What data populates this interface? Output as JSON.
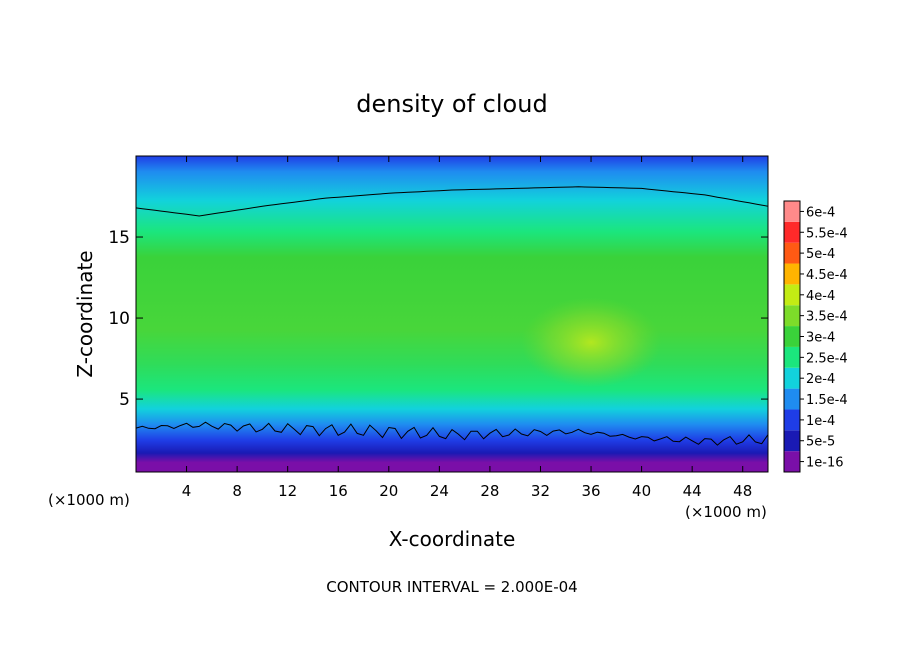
{
  "chart_data": {
    "type": "heatmap",
    "title": "density of cloud",
    "xlabel": "X-coordinate",
    "ylabel": "Z-coordinate",
    "x_unit_left": "(×1000 m)",
    "x_unit_right": "(×1000 m)",
    "footer": "CONTOUR INTERVAL = 2.000E-04",
    "xlim": [
      0,
      50
    ],
    "ylim": [
      0.5,
      20
    ],
    "x_ticks": [
      4,
      8,
      12,
      16,
      20,
      24,
      28,
      32,
      36,
      40,
      44,
      48
    ],
    "y_ticks": [
      5,
      10,
      15
    ],
    "legend_placement": "right",
    "colorbar": [
      {
        "label": "1e-16",
        "color": "#7a0fa8"
      },
      {
        "label": "5e-5",
        "color": "#1a1ab4"
      },
      {
        "label": "1e-4",
        "color": "#1f3de6"
      },
      {
        "label": "1.5e-4",
        "color": "#1f8cf0"
      },
      {
        "label": "2e-4",
        "color": "#12d2dc"
      },
      {
        "label": "2.5e-4",
        "color": "#1be67d"
      },
      {
        "label": "3e-4",
        "color": "#3ad23a"
      },
      {
        "label": "3.5e-4",
        "color": "#7ddc2a"
      },
      {
        "label": "4e-4",
        "color": "#c3ec14"
      },
      {
        "label": "4.5e-4",
        "color": "#ffb400"
      },
      {
        "label": "5e-4",
        "color": "#ff5a14"
      },
      {
        "label": "5.5e-4",
        "color": "#ff2a2a"
      },
      {
        "label": "6e-4",
        "color": "#ff8a8a"
      }
    ],
    "upper_contour": {
      "level": 0.0002,
      "x": [
        0,
        5,
        10,
        15,
        20,
        25,
        30,
        35,
        40,
        45,
        50
      ],
      "z": [
        16.8,
        16.3,
        16.9,
        17.4,
        17.7,
        17.9,
        18.0,
        18.1,
        18.0,
        17.6,
        16.9
      ]
    },
    "lower_contour": {
      "level": 0.0002,
      "x": [
        0,
        5,
        10,
        15,
        20,
        25,
        30,
        35,
        40,
        45,
        50
      ],
      "z": [
        3.2,
        3.4,
        3.2,
        3.1,
        3.0,
        2.8,
        2.9,
        3.0,
        2.6,
        2.4,
        2.5
      ]
    },
    "max_region": {
      "x": 36,
      "z": 8.5,
      "value": "4e-4"
    }
  }
}
